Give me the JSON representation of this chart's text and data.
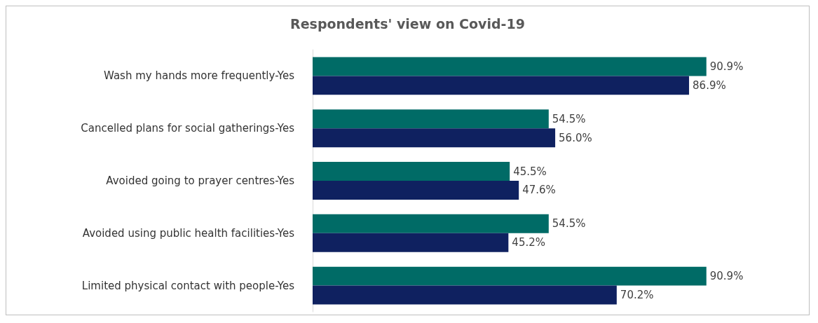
{
  "chart_data": {
    "type": "bar",
    "orientation": "horizontal",
    "title": "Respondents' view on Covid-19",
    "categories": [
      "Wash my hands more frequently-Yes",
      "Cancelled plans for social gatherings-Yes",
      "Avoided going to prayer centres-Yes",
      "Avoided using public health facilities-Yes",
      "Limited physical contact with people-Yes"
    ],
    "series": [
      {
        "color": "#006b66",
        "values": [
          90.9,
          54.5,
          45.5,
          54.5,
          90.9
        ],
        "value_labels": [
          "90.9%",
          "54.5%",
          "45.5%",
          "54.5%",
          "90.9%"
        ]
      },
      {
        "color": "#0f2160",
        "values": [
          86.9,
          56.0,
          47.6,
          45.2,
          70.2
        ],
        "value_labels": [
          "86.9%",
          "56.0%",
          "47.6%",
          "45.2%",
          "70.2%"
        ]
      }
    ]
  }
}
